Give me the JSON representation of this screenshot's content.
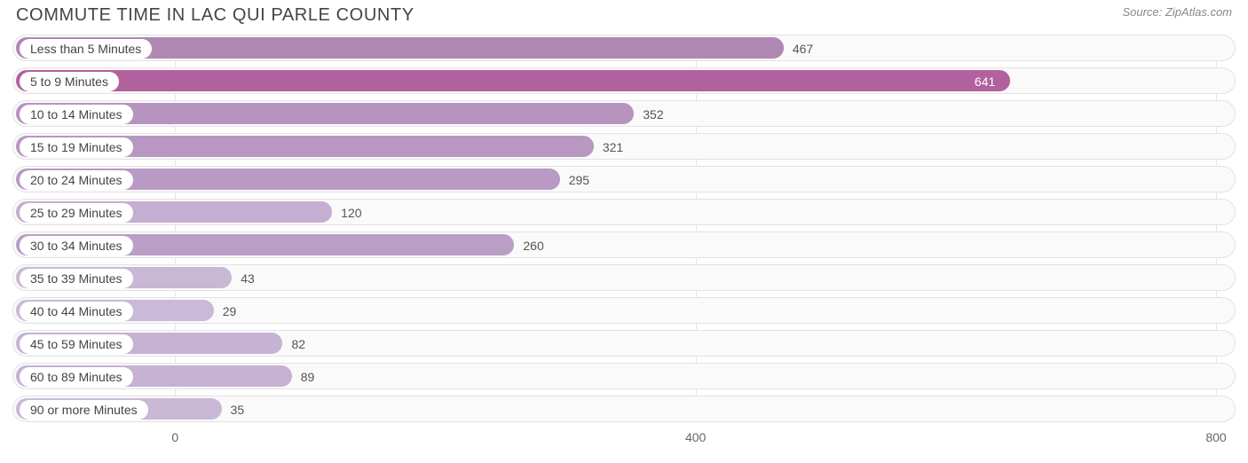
{
  "title": "COMMUTE TIME IN LAC QUI PARLE COUNTY",
  "source": "Source: ZipAtlas.com",
  "chart": {
    "type": "bar-horizontal",
    "xlim": [
      -125,
      815
    ],
    "label_color": "#444444",
    "axis_color": "#666666",
    "grid_color": "#e5e5e5",
    "row_bg": "#fafafa",
    "row_border": "#e2e2e2",
    "pill_bg": "#ffffff",
    "ticks": [
      0,
      400,
      800
    ]
  },
  "bars": [
    {
      "label": "Less than 5 Minutes",
      "value": 467,
      "fill": "#b086b3",
      "value_color": "#555555",
      "value_inside": false
    },
    {
      "label": "5 to 9 Minutes",
      "value": 641,
      "fill": "#b2619f",
      "value_color": "#ffffff",
      "value_inside": true
    },
    {
      "label": "10 to 14 Minutes",
      "value": 352,
      "fill": "#b793c0",
      "value_color": "#555555",
      "value_inside": false
    },
    {
      "label": "15 to 19 Minutes",
      "value": 321,
      "fill": "#b897c2",
      "value_color": "#555555",
      "value_inside": false
    },
    {
      "label": "20 to 24 Minutes",
      "value": 295,
      "fill": "#b99ac4",
      "value_color": "#555555",
      "value_inside": false
    },
    {
      "label": "25 to 29 Minutes",
      "value": 120,
      "fill": "#c4aed1",
      "value_color": "#555555",
      "value_inside": false
    },
    {
      "label": "30 to 34 Minutes",
      "value": 260,
      "fill": "#ba9ec6",
      "value_color": "#555555",
      "value_inside": false
    },
    {
      "label": "35 to 39 Minutes",
      "value": 43,
      "fill": "#c9b7d6",
      "value_color": "#555555",
      "value_inside": false
    },
    {
      "label": "40 to 44 Minutes",
      "value": 29,
      "fill": "#cab9d8",
      "value_color": "#555555",
      "value_inside": false
    },
    {
      "label": "45 to 59 Minutes",
      "value": 82,
      "fill": "#c6b2d3",
      "value_color": "#555555",
      "value_inside": false
    },
    {
      "label": "60 to 89 Minutes",
      "value": 89,
      "fill": "#c6b1d3",
      "value_color": "#555555",
      "value_inside": false
    },
    {
      "label": "90 or more Minutes",
      "value": 35,
      "fill": "#cab8d7",
      "value_color": "#555555",
      "value_inside": false
    }
  ]
}
